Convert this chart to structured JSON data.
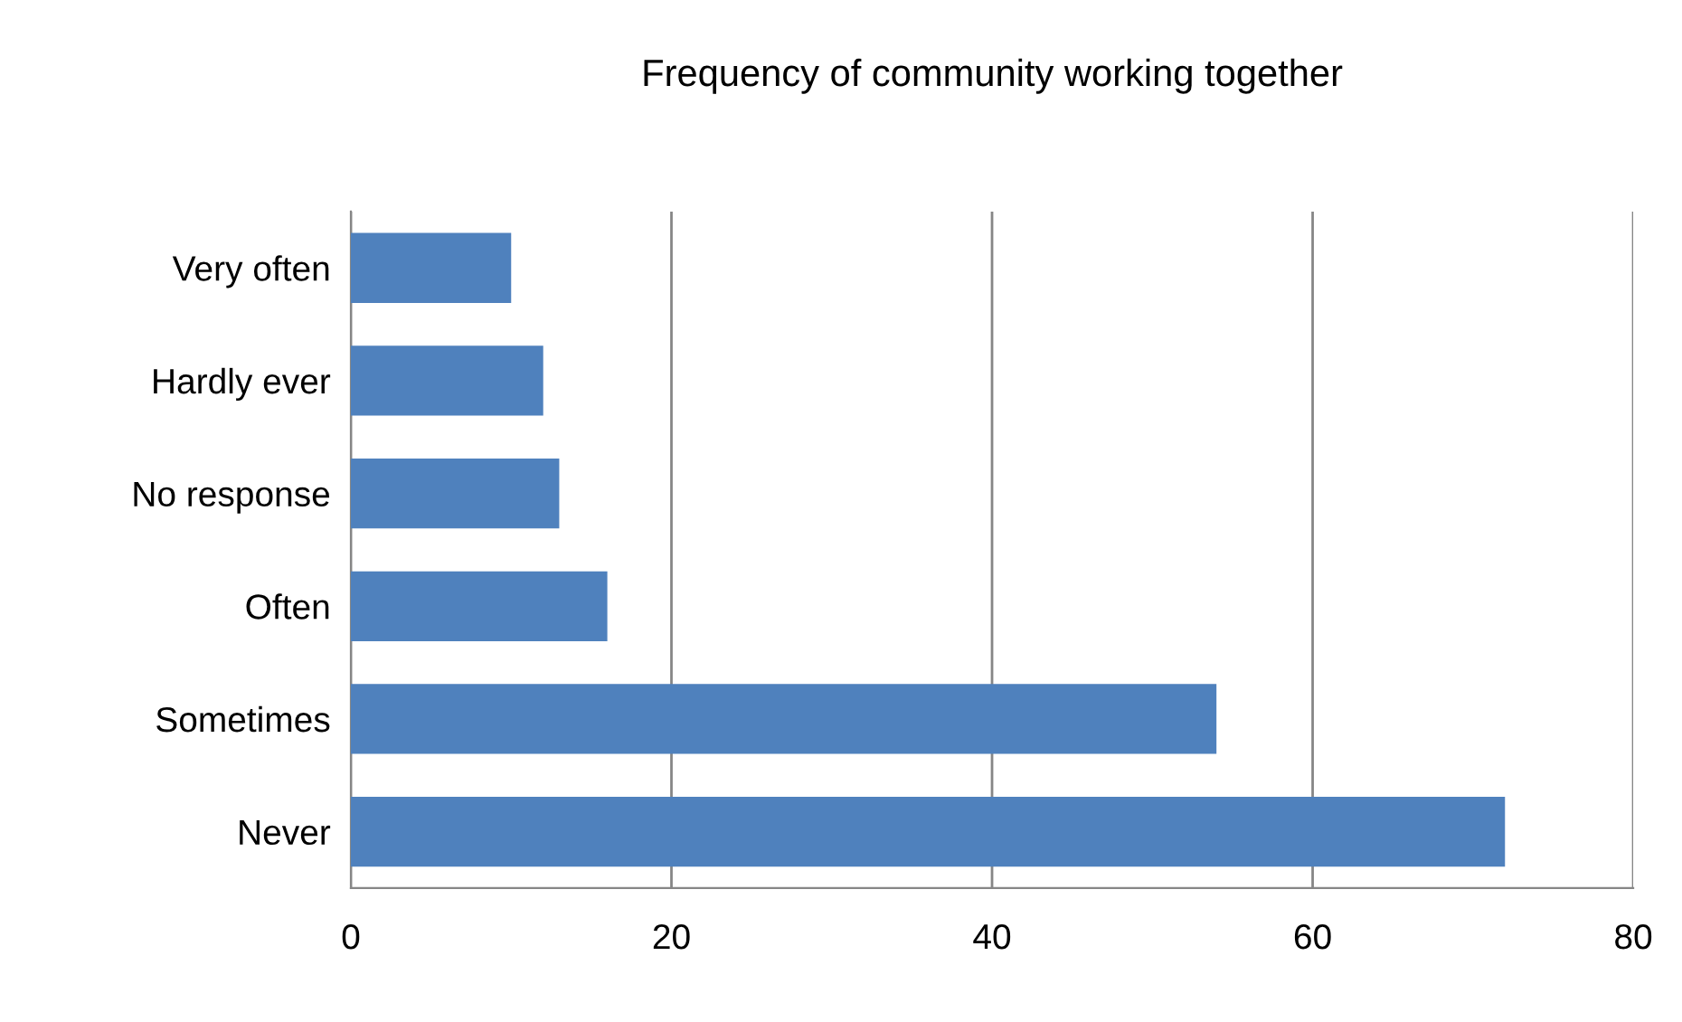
{
  "chart_data": {
    "type": "bar",
    "orientation": "horizontal",
    "title": "Frequency of community working together",
    "categories": [
      "Very often",
      "Hardly ever",
      "No response",
      "Often",
      "Sometimes",
      "Never"
    ],
    "values": [
      10,
      12,
      13,
      16,
      54,
      72
    ],
    "color": "#4f81bd",
    "xlim": [
      0,
      80
    ],
    "xticks": [
      0,
      20,
      40,
      60,
      80
    ],
    "grid": "x",
    "legend": false
  }
}
